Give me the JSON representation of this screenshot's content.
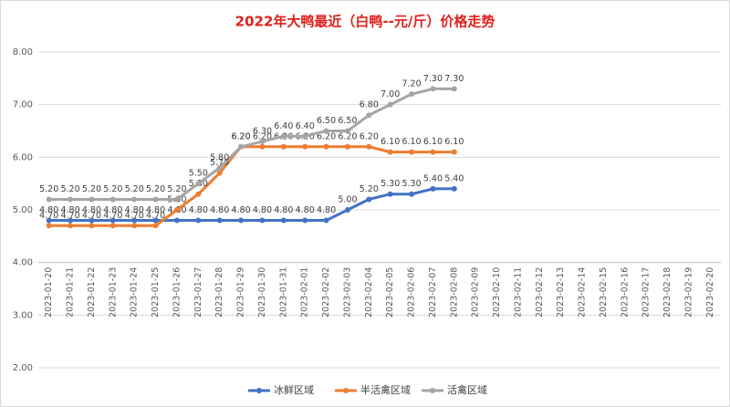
{
  "chart_data": {
    "type": "line",
    "title": "2022年大鸭最近（白鸭--元/斤）价格走势",
    "categories": [
      "2023-01-20",
      "2023-01-21",
      "2023-01-22",
      "2023-01-23",
      "2023-01-24",
      "2023-01-25",
      "2023-01-26",
      "2023-01-27",
      "2023-01-28",
      "2023-01-29",
      "2023-01-30",
      "2023-01-31",
      "2023-02-01",
      "2023-02-02",
      "2023-02-03",
      "2023-02-04",
      "2023-02-05",
      "2023-02-06",
      "2023-02-07",
      "2023-02-08",
      "2023-02-09",
      "2023-02-10",
      "2023-02-11",
      "2023-02-12",
      "2023-02-13",
      "2023-02-14",
      "2023-02-15",
      "2023-02-16",
      "2023-02-17",
      "2023-02-18",
      "2023-02-19",
      "2023-02-20"
    ],
    "series": [
      {
        "name": "冰鲜区域",
        "color": "#4472c4",
        "values": [
          4.8,
          4.8,
          4.8,
          4.8,
          4.8,
          4.8,
          4.8,
          4.8,
          4.8,
          4.8,
          4.8,
          4.8,
          4.8,
          4.8,
          5.0,
          5.2,
          5.3,
          5.3,
          5.4,
          5.4,
          null,
          null,
          null,
          null,
          null,
          null,
          null,
          null,
          null,
          null,
          null,
          null
        ],
        "value_labels": [
          "4.80",
          "4.80",
          "4.80",
          "4.80",
          "4.80",
          "4.80",
          "4.80",
          "4.80",
          "4.80",
          "4.80",
          "4.80",
          "4.80",
          "4.80",
          "4.80",
          "5.00",
          "5.20",
          "5.30",
          "5.30",
          "5.40",
          "5.40",
          null,
          null,
          null,
          null,
          null,
          null,
          null,
          null,
          null,
          null,
          null,
          null
        ]
      },
      {
        "name": "半活禽区域",
        "color": "#ed7d31",
        "values": [
          4.7,
          4.7,
          4.7,
          4.7,
          4.7,
          4.7,
          5.0,
          5.3,
          5.7,
          6.2,
          6.2,
          6.2,
          6.2,
          6.2,
          6.2,
          6.2,
          6.1,
          6.1,
          6.1,
          6.1,
          null,
          null,
          null,
          null,
          null,
          null,
          null,
          null,
          null,
          null,
          null,
          null
        ],
        "value_labels": [
          "4.70",
          "4.70",
          "4.70",
          "4.70",
          "4.70",
          "4.70",
          "5.00",
          "5.30",
          "5.70",
          "6.20",
          "6.20",
          "6.20",
          "6.20",
          "6.20",
          "6.20",
          "6.20",
          "6.10",
          "6.10",
          "6.10",
          "6.10",
          null,
          null,
          null,
          null,
          null,
          null,
          null,
          null,
          null,
          null,
          null,
          null
        ]
      },
      {
        "name": "活禽区域",
        "color": "#a5a5a5",
        "values": [
          5.2,
          5.2,
          5.2,
          5.2,
          5.2,
          5.2,
          5.2,
          5.5,
          5.8,
          6.2,
          6.3,
          6.4,
          6.4,
          6.5,
          6.5,
          6.8,
          7.0,
          7.2,
          7.3,
          7.3,
          null,
          null,
          null,
          null,
          null,
          null,
          null,
          null,
          null,
          null,
          null,
          null
        ],
        "value_labels": [
          "5.20",
          "5.20",
          "5.20",
          "5.20",
          "5.20",
          "5.20",
          "5.20",
          "5.50",
          "5.80",
          "6.20",
          "6.30",
          "6.40",
          "6.40",
          "6.50",
          "6.50",
          "6.80",
          "7.00",
          "7.20",
          "7.30",
          "7.30",
          null,
          null,
          null,
          null,
          null,
          null,
          null,
          null,
          null,
          null,
          null,
          null
        ]
      }
    ],
    "ylim": [
      2,
      8
    ],
    "yticks": [
      {
        "value": 2,
        "label": "2.00"
      },
      {
        "value": 3,
        "label": "3.00"
      },
      {
        "value": 4,
        "label": "4.00"
      },
      {
        "value": 5,
        "label": "5.00"
      },
      {
        "value": 6,
        "label": "6.00"
      },
      {
        "value": 7,
        "label": "7.00"
      },
      {
        "value": 8,
        "label": "8.00"
      }
    ],
    "xaxis_crosses": 4,
    "grid": true,
    "legend": "bottom"
  }
}
